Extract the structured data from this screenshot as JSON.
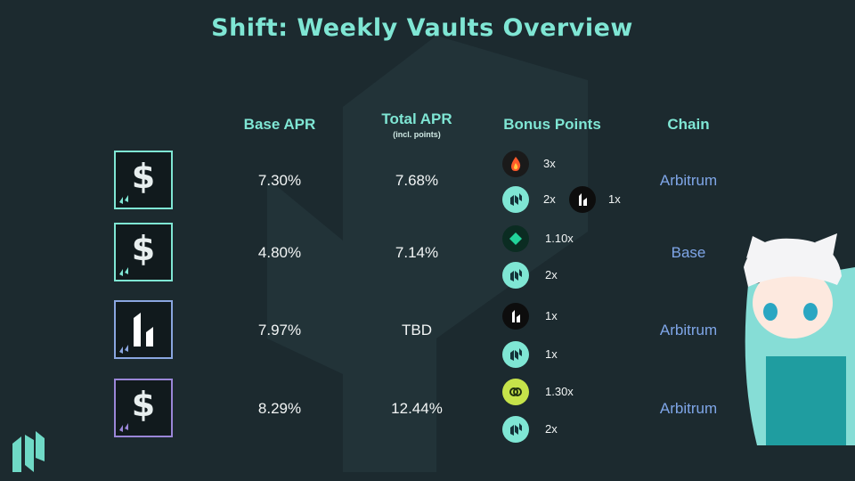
{
  "title": "Shift: Weekly Vaults Overview",
  "header": {
    "base_apr": "Base APR",
    "total_apr": "Total APR",
    "total_apr_note": "(incl. points)",
    "bonus_points": "Bonus Points",
    "chain": "Chain"
  },
  "rows": [
    {
      "base_apr": "7.30%",
      "total_apr": "7.68%",
      "bonus": [
        "3x",
        "2x",
        "1x"
      ],
      "chain": "Arbitrum"
    },
    {
      "base_apr": "4.80%",
      "total_apr": "7.14%",
      "bonus": [
        "1.10x",
        "2x"
      ],
      "chain": "Base"
    },
    {
      "base_apr": "7.97%",
      "total_apr": "TBD",
      "bonus": [
        "1x",
        "1x"
      ],
      "chain": "Arbitrum"
    },
    {
      "base_apr": "8.29%",
      "total_apr": "12.44%",
      "bonus": [
        "1.30x",
        "2x"
      ],
      "chain": "Arbitrum"
    }
  ]
}
